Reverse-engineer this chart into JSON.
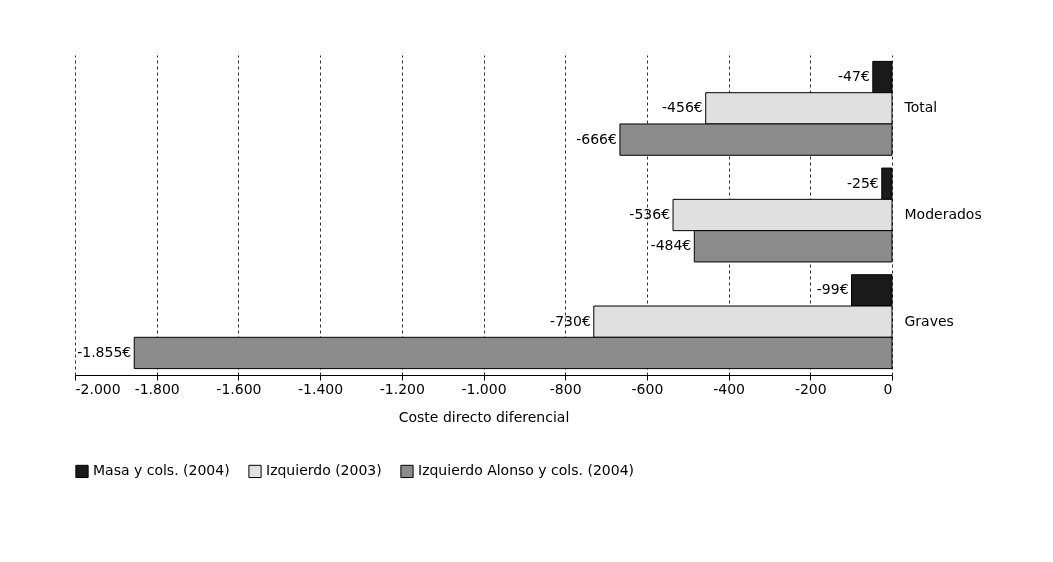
{
  "chart_data": {
    "type": "bar",
    "orientation": "horizontal",
    "xlabel": "Coste directo diferencial",
    "categories": [
      "Total",
      "Moderados",
      "Graves"
    ],
    "series": [
      {
        "name": "Masa y cols. (2004)",
        "color": "#1a1a1a",
        "values": [
          -47,
          -25,
          -99
        ],
        "value_labels": [
          "-47€",
          "-25€",
          "-99€"
        ]
      },
      {
        "name": "Izquierdo (2003)",
        "color": "#e0e0e0",
        "values": [
          -456,
          -536,
          -730
        ],
        "value_labels": [
          "-456€",
          "-536€",
          "-730€"
        ]
      },
      {
        "name": "Izquierdo Alonso y cols. (2004)",
        "color": "#8c8c8c",
        "values": [
          -666,
          -484,
          -1855
        ],
        "value_labels": [
          "-666€",
          "-484€",
          "-1.855€"
        ]
      }
    ],
    "xlim": [
      -2000,
      0
    ],
    "xticks": [
      {
        "value": -2000,
        "label": "-2.000"
      },
      {
        "value": -1800,
        "label": "-1.800"
      },
      {
        "value": -1600,
        "label": "-1.600"
      },
      {
        "value": -1400,
        "label": "-1.400"
      },
      {
        "value": -1200,
        "label": "-1.200"
      },
      {
        "value": -1000,
        "label": "-1.000"
      },
      -800,
      -600,
      -400,
      -200,
      0
    ],
    "grid": "x",
    "legend": "bottom"
  }
}
